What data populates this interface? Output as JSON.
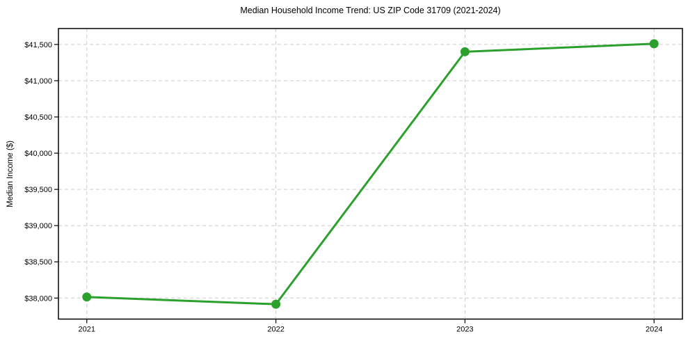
{
  "chart_data": {
    "type": "line",
    "title": "Median Household Income Trend: US ZIP Code 31709 (2021-2024)",
    "ylabel": "Median Income ($)",
    "xlabel": "",
    "x": [
      2021,
      2022,
      2023,
      2024
    ],
    "x_tick_labels": [
      "2021",
      "2022",
      "2023",
      "2024"
    ],
    "series": [
      {
        "name": "Median household income",
        "values": [
          38015,
          37915,
          41400,
          41510
        ]
      }
    ],
    "y_ticks": [
      38000,
      38500,
      39000,
      39500,
      40000,
      40500,
      41000,
      41500
    ],
    "y_tick_labels": [
      "$38,000",
      "$38,500",
      "$39,000",
      "$39,500",
      "$40,000",
      "$40,500",
      "$41,000",
      "$41,500"
    ],
    "ylim": [
      37710,
      41720
    ],
    "xlim": [
      2020.85,
      2024.15
    ],
    "grid": true,
    "grid_style": "dashed",
    "legend": "none",
    "line_color": "#2ca02c",
    "marker": "circle",
    "marker_radius": 6.5,
    "line_width": 3,
    "grid_color": "#cccccc",
    "axis_color": "#000000",
    "background": "#ffffff"
  }
}
